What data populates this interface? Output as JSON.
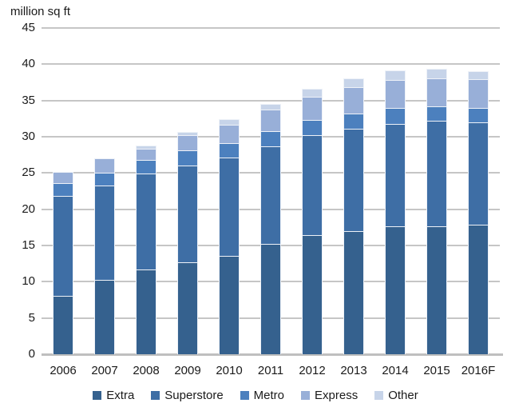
{
  "chart_data": {
    "type": "bar",
    "stacked": true,
    "title": "million sq ft",
    "xlabel": "",
    "ylabel": "million sq ft",
    "categories": [
      "2006",
      "2007",
      "2008",
      "2009",
      "2010",
      "2011",
      "2012",
      "2013",
      "2014",
      "2015",
      "2016F"
    ],
    "series": [
      {
        "name": "Extra",
        "color": "#35618E",
        "values": [
          8.0,
          10.3,
          11.7,
          12.7,
          13.6,
          15.2,
          16.4,
          17.0,
          17.6,
          17.7,
          17.9
        ]
      },
      {
        "name": "Superstore",
        "color": "#3E6EA5",
        "values": [
          13.8,
          13.0,
          13.2,
          13.3,
          13.5,
          13.5,
          13.8,
          14.1,
          14.2,
          14.5,
          14.1
        ]
      },
      {
        "name": "Metro",
        "color": "#4C80BE",
        "values": [
          1.8,
          1.7,
          1.9,
          2.1,
          2.0,
          2.1,
          2.1,
          2.1,
          2.2,
          2.0,
          2.0
        ]
      },
      {
        "name": "Express",
        "color": "#98AFD8",
        "values": [
          1.5,
          2.0,
          1.6,
          2.1,
          2.5,
          2.9,
          3.2,
          3.6,
          3.8,
          3.9,
          3.9
        ]
      },
      {
        "name": "Other",
        "color": "#C7D4E9",
        "values": [
          0.0,
          0.0,
          0.4,
          0.5,
          0.8,
          0.8,
          1.1,
          1.2,
          1.3,
          1.3,
          1.1
        ]
      }
    ],
    "totals": [
      25.1,
      27.0,
      28.8,
      30.7,
      32.4,
      34.5,
      36.6,
      38.0,
      39.1,
      39.4,
      39.0
    ],
    "ylim": [
      0,
      45
    ],
    "yticks": [
      0,
      5,
      10,
      15,
      20,
      25,
      30,
      35,
      40,
      45
    ],
    "grid": true,
    "legend_position": "bottom",
    "colors": {
      "gridline": "#c6c6c6",
      "baseline": "#bfbfbf",
      "text": "#1a1a1a",
      "background": "#ffffff"
    }
  }
}
